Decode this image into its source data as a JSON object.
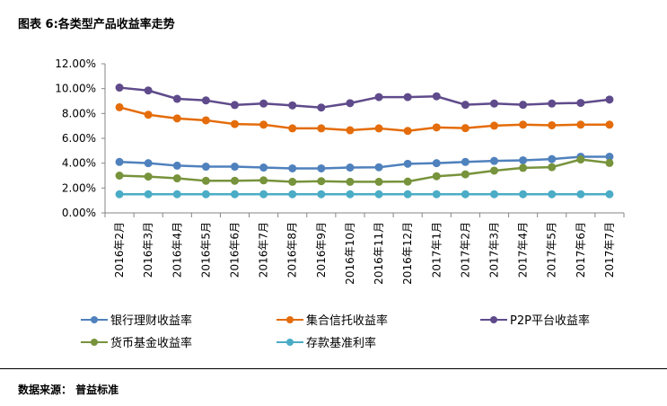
{
  "header": {
    "title": "图表 6:各类型产品收益率走势"
  },
  "footer": {
    "source": "数据来源： 普益标准"
  },
  "chart_data": {
    "type": "line",
    "title": "",
    "xlabel": "",
    "ylabel": "",
    "ylim": [
      0,
      0.12
    ],
    "yticks": [
      "0.00%",
      "2.00%",
      "4.00%",
      "6.00%",
      "8.00%",
      "10.00%",
      "12.00%"
    ],
    "yticks_values": [
      0,
      0.02,
      0.04,
      0.06,
      0.08,
      0.1,
      0.12
    ],
    "grid": false,
    "legend_position": "bottom",
    "categories": [
      "2016年2月",
      "2016年3月",
      "2016年4月",
      "2016年5月",
      "2016年6月",
      "2016年7月",
      "2016年8月",
      "2016年9月",
      "2016年10月",
      "2016年11月",
      "2016年12月",
      "2017年1月",
      "2017年2月",
      "2017年3月",
      "2017年4月",
      "2017年5月",
      "2017年6月",
      "2017年7月"
    ],
    "series": [
      {
        "name": "银行理财收益率",
        "color": "#4f81bd",
        "values": [
          0.041,
          0.04,
          0.038,
          0.0372,
          0.0372,
          0.0365,
          0.0358,
          0.0358,
          0.0365,
          0.0367,
          0.0395,
          0.04,
          0.041,
          0.0418,
          0.0423,
          0.0433,
          0.0452,
          0.0452
        ]
      },
      {
        "name": "集合信托收益率",
        "color": "#e46c0a",
        "values": [
          0.085,
          0.079,
          0.076,
          0.0745,
          0.0715,
          0.071,
          0.068,
          0.068,
          0.0665,
          0.068,
          0.066,
          0.0688,
          0.0682,
          0.0702,
          0.071,
          0.0705,
          0.071,
          0.071
        ]
      },
      {
        "name": "P2P平台收益率",
        "color": "#5f4b8b",
        "values": [
          0.1008,
          0.0985,
          0.0918,
          0.0905,
          0.0868,
          0.088,
          0.0865,
          0.0848,
          0.0883,
          0.0932,
          0.0932,
          0.0938,
          0.087,
          0.088,
          0.087,
          0.088,
          0.0885,
          0.0912
        ]
      },
      {
        "name": "货币基金收益率",
        "color": "#77933c",
        "values": [
          0.03,
          0.0292,
          0.0278,
          0.0258,
          0.0258,
          0.0262,
          0.025,
          0.0255,
          0.025,
          0.025,
          0.0252,
          0.0295,
          0.031,
          0.034,
          0.0362,
          0.0368,
          0.043,
          0.0402
        ]
      },
      {
        "name": "存款基准利率",
        "color": "#4bacc6",
        "values": [
          0.015,
          0.015,
          0.015,
          0.015,
          0.015,
          0.015,
          0.015,
          0.015,
          0.015,
          0.015,
          0.015,
          0.015,
          0.015,
          0.015,
          0.015,
          0.015,
          0.015,
          0.015
        ]
      }
    ]
  }
}
